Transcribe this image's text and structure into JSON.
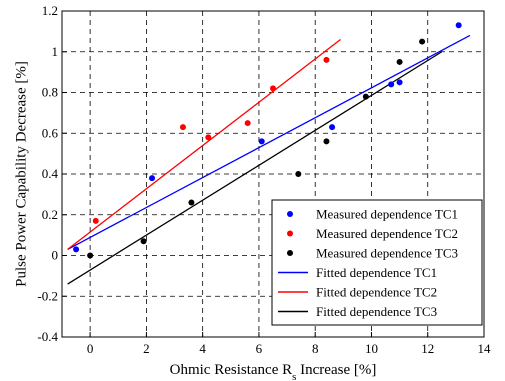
{
  "chart_data": {
    "type": "scatter",
    "title": "",
    "xlabel": "Ohmic Resistance R",
    "xlabel_sub": "s",
    "xlabel_suffix": " Increase [%]",
    "ylabel": "Pulse Power Capability Decrease [%]",
    "xlim": [
      -1,
      14
    ],
    "ylim": [
      -0.4,
      1.2
    ],
    "xticks": [
      0,
      2,
      4,
      6,
      8,
      10,
      12,
      14
    ],
    "yticks": [
      -0.4,
      -0.2,
      0,
      0.2,
      0.4,
      0.6,
      0.8,
      1,
      1.2
    ],
    "xtick_labels": [
      "0",
      "2",
      "4",
      "6",
      "8",
      "10",
      "12",
      "14"
    ],
    "ytick_labels": [
      "-0.4",
      "-0.2",
      "0",
      "0.2",
      "0.4",
      "0.6",
      "0.8",
      "1",
      "1.2"
    ],
    "grid": true,
    "legend_position": "bottom-right",
    "scatter_series": [
      {
        "name": "Measured dependence TC1",
        "color": "#0000ff",
        "points": [
          [
            -0.5,
            0.03
          ],
          [
            2.2,
            0.38
          ],
          [
            6.1,
            0.56
          ],
          [
            8.6,
            0.63
          ],
          [
            10.7,
            0.84
          ],
          [
            11.0,
            0.85
          ],
          [
            13.1,
            1.13
          ]
        ]
      },
      {
        "name": "Measured dependence TC2",
        "color": "#ff0000",
        "points": [
          [
            0.2,
            0.17
          ],
          [
            3.3,
            0.63
          ],
          [
            4.2,
            0.58
          ],
          [
            5.6,
            0.65
          ],
          [
            6.5,
            0.82
          ],
          [
            8.4,
            0.96
          ]
        ]
      },
      {
        "name": "Measured dependence TC3",
        "color": "#000000",
        "points": [
          [
            0.0,
            0.0
          ],
          [
            1.9,
            0.07
          ],
          [
            3.6,
            0.26
          ],
          [
            7.4,
            0.4
          ],
          [
            8.4,
            0.56
          ],
          [
            9.8,
            0.78
          ],
          [
            11.0,
            0.95
          ],
          [
            11.8,
            1.05
          ]
        ]
      }
    ],
    "line_series": [
      {
        "name": "Fitted dependence TC1",
        "color": "#0000ff",
        "x": [
          -0.8,
          13.5
        ],
        "y": [
          0.03,
          1.08
        ]
      },
      {
        "name": "Fitted dependence TC2",
        "color": "#ff0000",
        "x": [
          -0.8,
          8.9
        ],
        "y": [
          0.03,
          1.06
        ]
      },
      {
        "name": "Fitted dependence TC3",
        "color": "#000000",
        "x": [
          -0.8,
          12.5
        ],
        "y": [
          -0.14,
          1.0
        ]
      }
    ]
  }
}
